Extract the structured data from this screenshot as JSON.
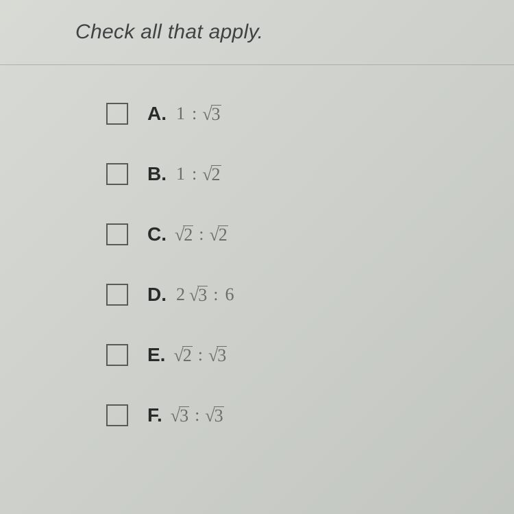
{
  "prompt": "Check all that apply.",
  "options": [
    {
      "letter": "A.",
      "left_coef": "1",
      "left_rad": null,
      "right_coef": null,
      "right_rad": "3"
    },
    {
      "letter": "B.",
      "left_coef": "1",
      "left_rad": null,
      "right_coef": null,
      "right_rad": "2"
    },
    {
      "letter": "C.",
      "left_coef": null,
      "left_rad": "2",
      "right_coef": null,
      "right_rad": "2"
    },
    {
      "letter": "D.",
      "left_coef": "2",
      "left_rad": "3",
      "right_coef": "6",
      "right_rad": null
    },
    {
      "letter": "E.",
      "left_coef": null,
      "left_rad": "2",
      "right_coef": null,
      "right_rad": "3"
    },
    {
      "letter": "F.",
      "left_coef": null,
      "left_rad": "3",
      "right_coef": null,
      "right_rad": "3"
    }
  ],
  "colors": {
    "text_primary": "#2a2a28",
    "text_secondary": "#6d6e68",
    "checkbox_border": "#5a5a56",
    "background_start": "#d8dad5",
    "background_end": "#c2c6c0"
  },
  "typography": {
    "prompt_fontsize": 30,
    "label_fontsize": 28,
    "expr_fontsize": 26
  }
}
